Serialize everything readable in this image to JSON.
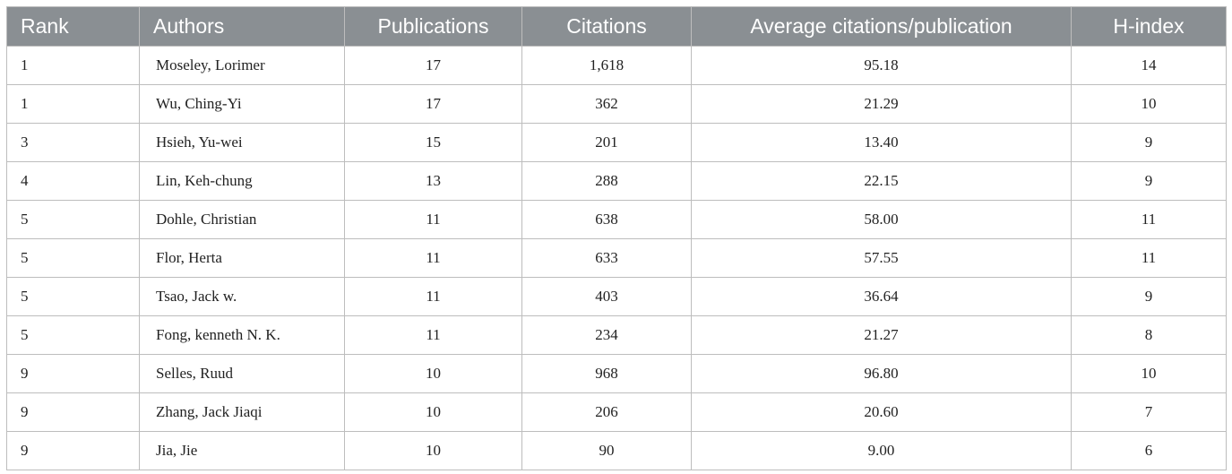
{
  "table": {
    "headers": [
      "Rank",
      "Authors",
      "Publications",
      "Citations",
      "Average citations/publication",
      "H-index"
    ],
    "rows": [
      [
        "1",
        "Moseley, Lorimer",
        "17",
        "1,618",
        "95.18",
        "14"
      ],
      [
        "1",
        "Wu, Ching-Yi",
        "17",
        "362",
        "21.29",
        "10"
      ],
      [
        "3",
        "Hsieh, Yu-wei",
        "15",
        "201",
        "13.40",
        "9"
      ],
      [
        "4",
        "Lin, Keh-chung",
        "13",
        "288",
        "22.15",
        "9"
      ],
      [
        "5",
        "Dohle, Christian",
        "11",
        "638",
        "58.00",
        "11"
      ],
      [
        "5",
        "Flor, Herta",
        "11",
        "633",
        "57.55",
        "11"
      ],
      [
        "5",
        "Tsao, Jack w.",
        "11",
        "403",
        "36.64",
        "9"
      ],
      [
        "5",
        "Fong, kenneth N. K.",
        "11",
        "234",
        "21.27",
        "8"
      ],
      [
        "9",
        "Selles, Ruud",
        "10",
        "968",
        "96.80",
        "10"
      ],
      [
        "9",
        "Zhang, Jack Jiaqi",
        "10",
        "206",
        "20.60",
        "7"
      ],
      [
        "9",
        "Jia, Jie",
        "10",
        "90",
        "9.00",
        "6"
      ]
    ]
  },
  "colors": {
    "header_bg": "#8a8f93",
    "header_text": "#ffffff",
    "border": "#bdbdbd"
  }
}
